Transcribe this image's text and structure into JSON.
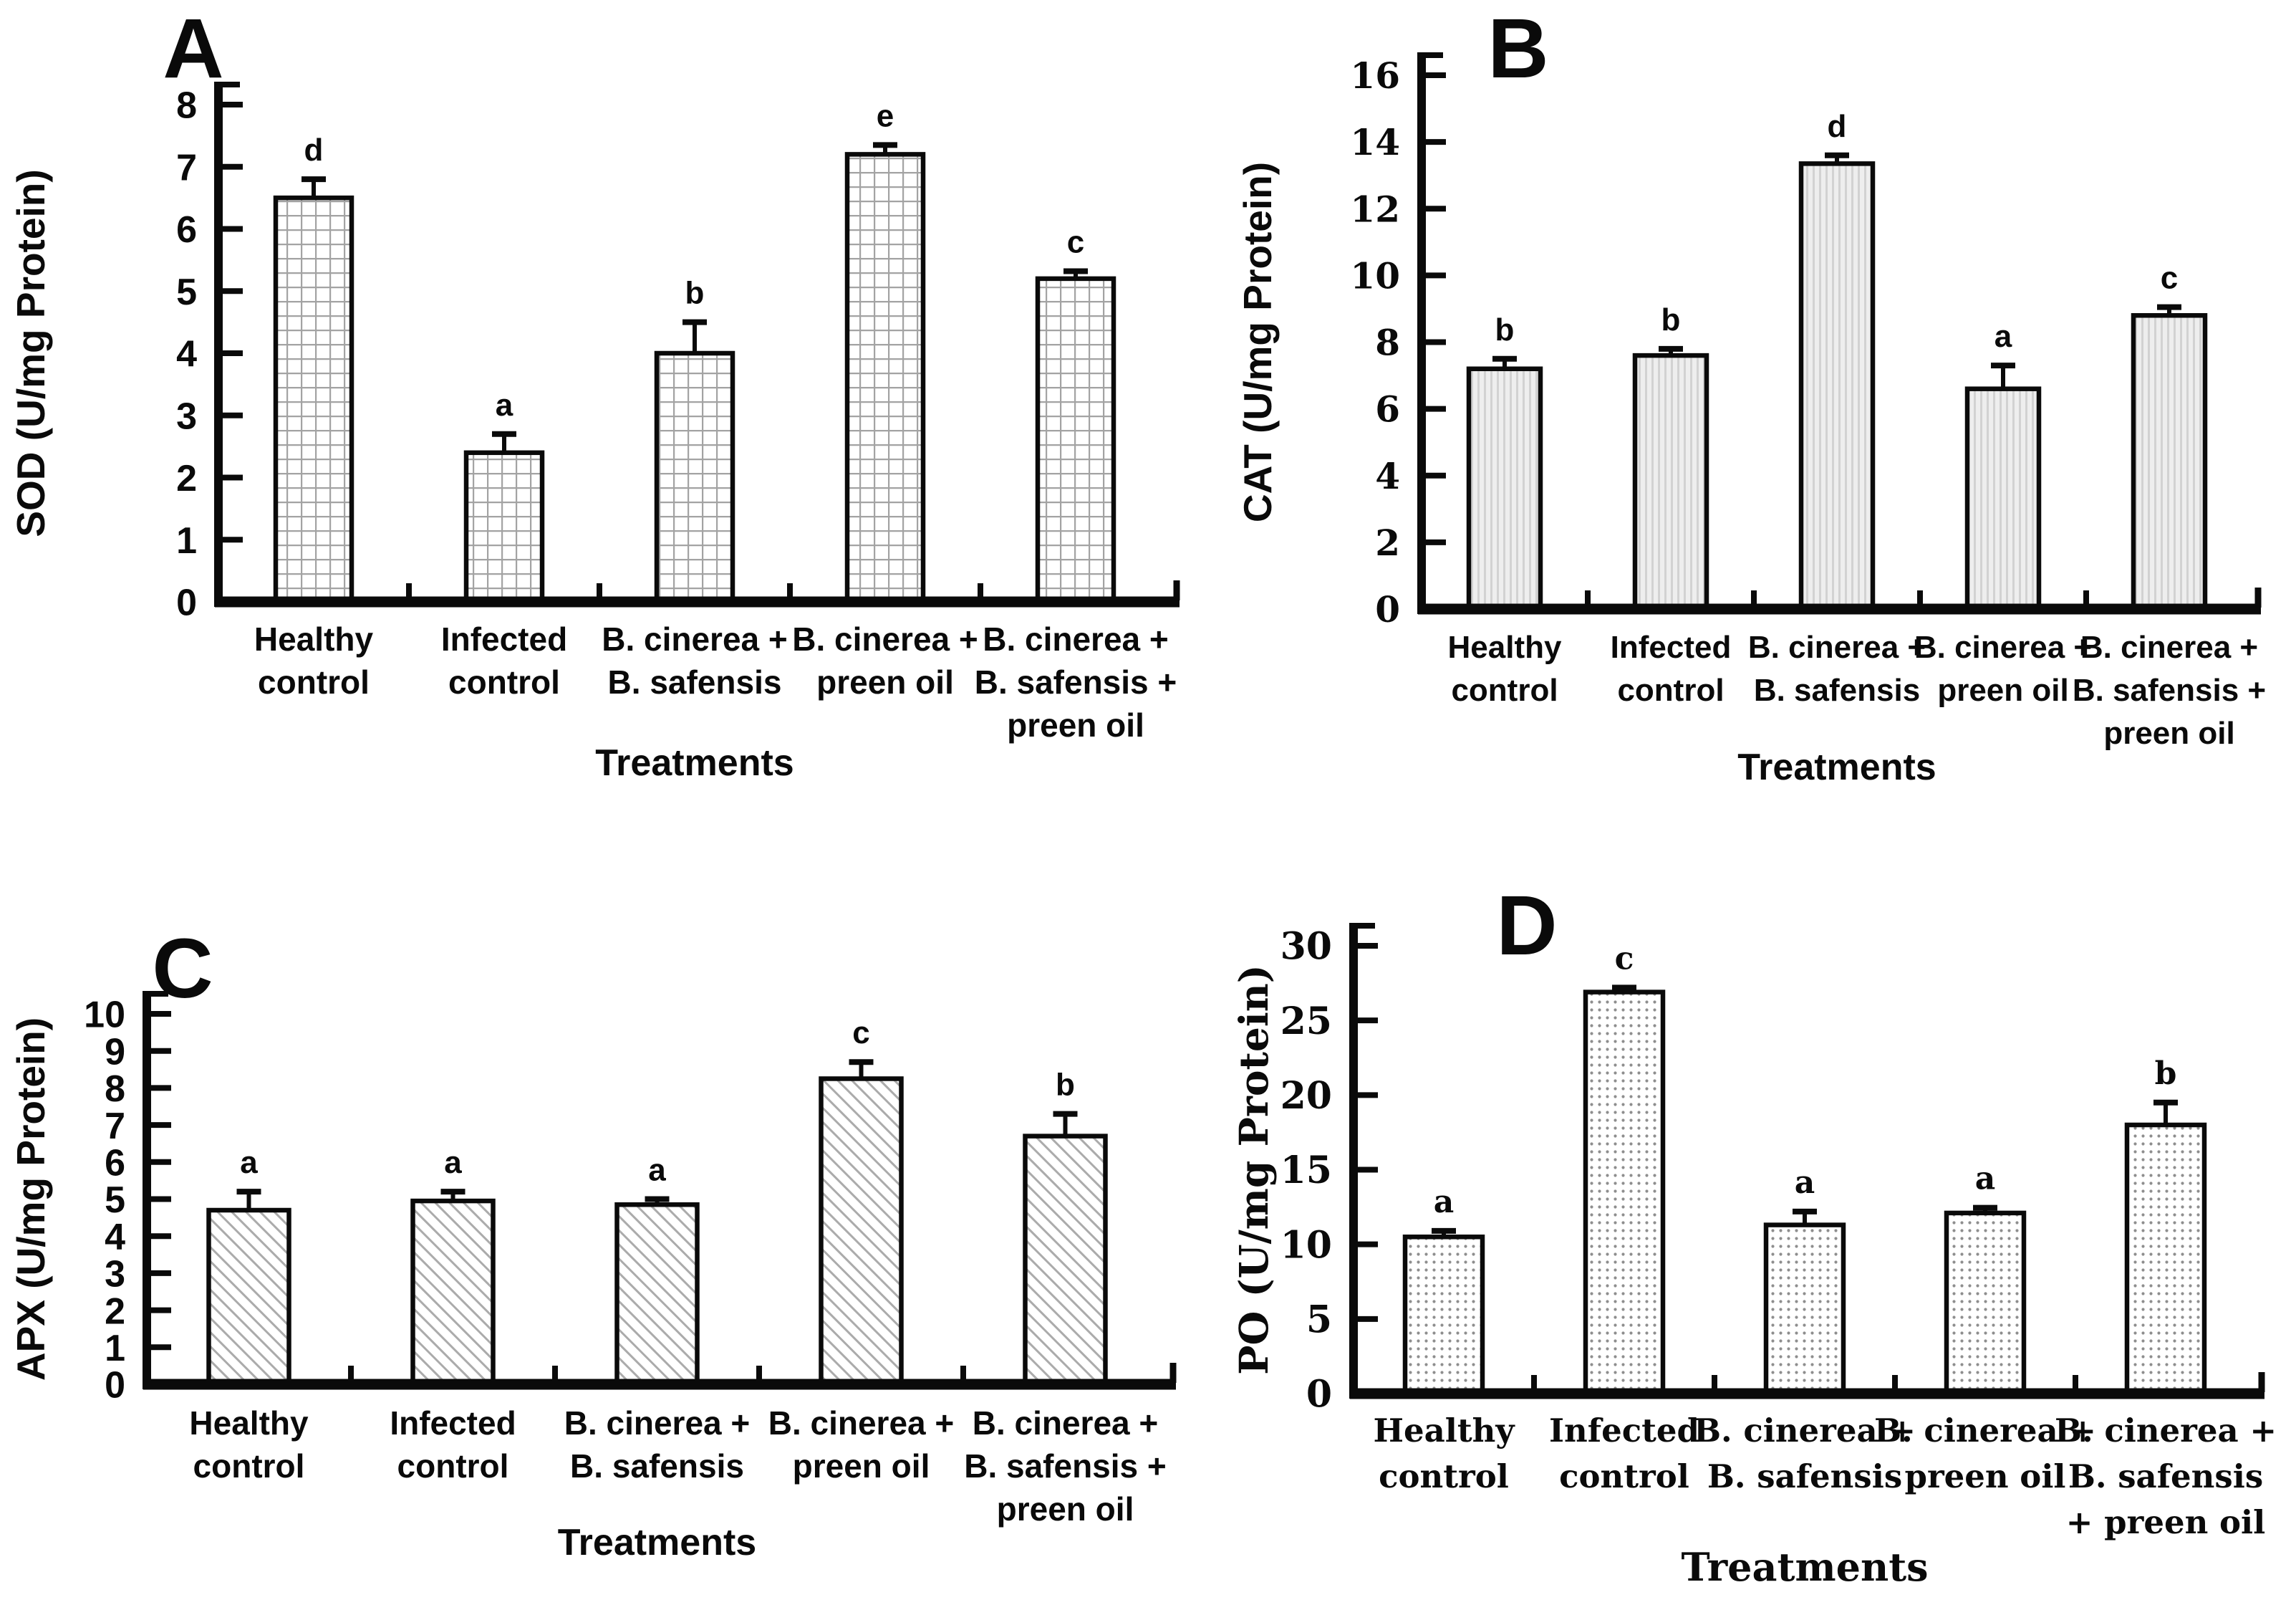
{
  "figure": {
    "background": "#ffffff",
    "text_color": "#0a0a0a",
    "bar_outline_color": "#0a0a0a",
    "pattern_ink_color": "#9a9a9a"
  },
  "chart_data": [
    {
      "type": "bar",
      "panel_label": "A",
      "ylabel": "SOD (U/mg Protein)",
      "xlabel": "Treatments",
      "ylim": [
        0,
        8
      ],
      "yticks": [
        0,
        1,
        2,
        3,
        4,
        5,
        6,
        7,
        8
      ],
      "grid": "off",
      "legend": "none",
      "pattern": "crosshatch-grid",
      "categories": [
        [
          "Healthy",
          "control"
        ],
        [
          "Infected",
          "control"
        ],
        [
          "B. cinerea +",
          "B. safensis"
        ],
        [
          "B. cinerea +",
          "preen oil"
        ],
        [
          "B. cinerea +",
          "B. safensis +",
          "preen oil"
        ]
      ],
      "values": [
        6.5,
        2.4,
        4.0,
        7.2,
        5.2
      ],
      "errors": [
        0.3,
        0.3,
        0.5,
        0.15,
        0.12
      ],
      "sig_letters": [
        "d",
        "a",
        "b",
        "e",
        "c"
      ]
    },
    {
      "type": "bar",
      "panel_label": "B",
      "ylabel": "CAT (U/mg Protein)",
      "xlabel": "Treatments",
      "ylim": [
        0,
        16
      ],
      "yticks": [
        0,
        2,
        4,
        6,
        8,
        10,
        12,
        14,
        16
      ],
      "grid": "off",
      "legend": "none",
      "pattern": "vertical-stripes",
      "categories": [
        [
          "Healthy",
          "control"
        ],
        [
          "Infected",
          "control"
        ],
        [
          "B. cinerea +",
          "B. safensis"
        ],
        [
          "B. cinerea +",
          "preen oil"
        ],
        [
          "B. cinerea +",
          "B. safensis +",
          "preen oil"
        ]
      ],
      "values": [
        7.2,
        7.6,
        13.35,
        6.6,
        8.8
      ],
      "errors": [
        0.3,
        0.2,
        0.25,
        0.7,
        0.25
      ],
      "sig_letters": [
        "b",
        "b",
        "d",
        "a",
        "c"
      ]
    },
    {
      "type": "bar",
      "panel_label": "C",
      "ylabel": "APX (U/mg Protein)",
      "xlabel": "Treatments",
      "ylim": [
        0,
        10
      ],
      "yticks": [
        0,
        1,
        2,
        3,
        4,
        5,
        6,
        7,
        8,
        9,
        10
      ],
      "grid": "off",
      "legend": "none",
      "pattern": "diagonal-hatch",
      "categories": [
        [
          "Healthy",
          "control"
        ],
        [
          "Infected",
          "control"
        ],
        [
          "B. cinerea +",
          "B. safensis"
        ],
        [
          "B. cinerea +",
          "preen oil"
        ],
        [
          "B. cinerea +",
          "B. safensis +",
          "preen oil"
        ]
      ],
      "values": [
        4.7,
        4.95,
        4.85,
        8.25,
        6.7
      ],
      "errors": [
        0.5,
        0.25,
        0.15,
        0.45,
        0.6
      ],
      "sig_letters": [
        "a",
        "a",
        "a",
        "c",
        "b"
      ]
    },
    {
      "type": "bar",
      "panel_label": "D",
      "ylabel": "PO (U/mg Protein)",
      "xlabel": "Treatments",
      "ylim": [
        0,
        30
      ],
      "yticks": [
        0,
        5,
        10,
        15,
        20,
        25,
        30
      ],
      "grid": "off",
      "legend": "none",
      "pattern": "dot-grid",
      "categories": [
        [
          "Healthy",
          "control"
        ],
        [
          "Infected",
          "control"
        ],
        [
          "B. cinerea +",
          "B. safensis"
        ],
        [
          "B. cinerea +",
          "preen oil"
        ],
        [
          "B. cinerea +",
          "B. safensis",
          "+ preen oil"
        ]
      ],
      "values": [
        10.5,
        26.9,
        11.3,
        12.1,
        18.0
      ],
      "errors": [
        0.4,
        0.3,
        0.9,
        0.35,
        1.5
      ],
      "sig_letters": [
        "a",
        "c",
        "a",
        "a",
        "b"
      ]
    }
  ]
}
